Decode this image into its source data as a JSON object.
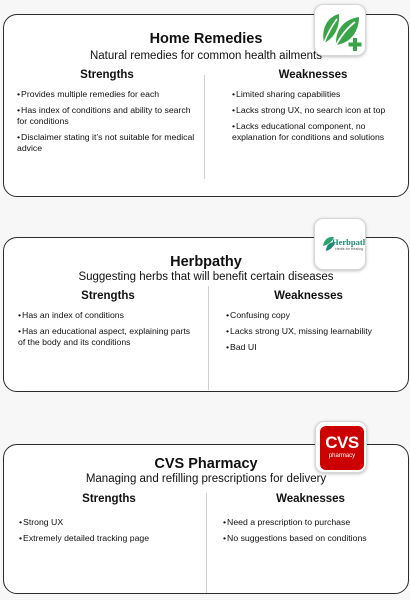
{
  "cards": [
    {
      "title": "Home Remedies",
      "subtitle": "Natural remedies for common health ailments",
      "strengths": {
        "heading": "Strengths",
        "items": [
          "Provides multiple remedies  for each",
          "Has index of conditions and ability to search for conditions",
          "Disclaimer stating it’s not suitable for medical advice"
        ]
      },
      "weaknesses": {
        "heading": "Weaknesses",
        "items": [
          "Limited sharing capabilities",
          "Lacks strong UX, no search icon at top",
          "Lacks educational component, no explanation for conditions and solutions"
        ]
      },
      "logo": {
        "icon": "leaf-plus-logo",
        "accent": "#3aa548"
      }
    },
    {
      "title": "Herbpathy",
      "subtitle": "Suggesting herbs that will benefit certain diseases",
      "strengths": {
        "heading": "Strengths",
        "items": [
          "Has an index of conditions",
          "Has an educational aspect, explaining parts of the body and its conditions"
        ]
      },
      "weaknesses": {
        "heading": "Weaknesses",
        "items": [
          "Confusing copy",
          "Lacks strong UX, missing learnability",
          "Bad UI"
        ]
      },
      "logo": {
        "icon": "herbpathy-logo",
        "wordmark": "Herbpathy",
        "tagline": "Herbs for Healing",
        "accent": "#1f8a73"
      }
    },
    {
      "title": "CVS Pharmacy",
      "subtitle": "Managing and refilling prescriptions for delivery",
      "strengths": {
        "heading": "Strengths",
        "items": [
          "Strong UX",
          "Extremely detailed tracking page"
        ]
      },
      "weaknesses": {
        "heading": "Weaknesses",
        "items": [
          "Need a prescription to purchase",
          "No suggestions based on conditions"
        ]
      },
      "logo": {
        "icon": "cvs-pharmacy-logo",
        "wordmark": "CVS",
        "tagline": "pharmacy",
        "accent": "#cc0000"
      }
    }
  ]
}
